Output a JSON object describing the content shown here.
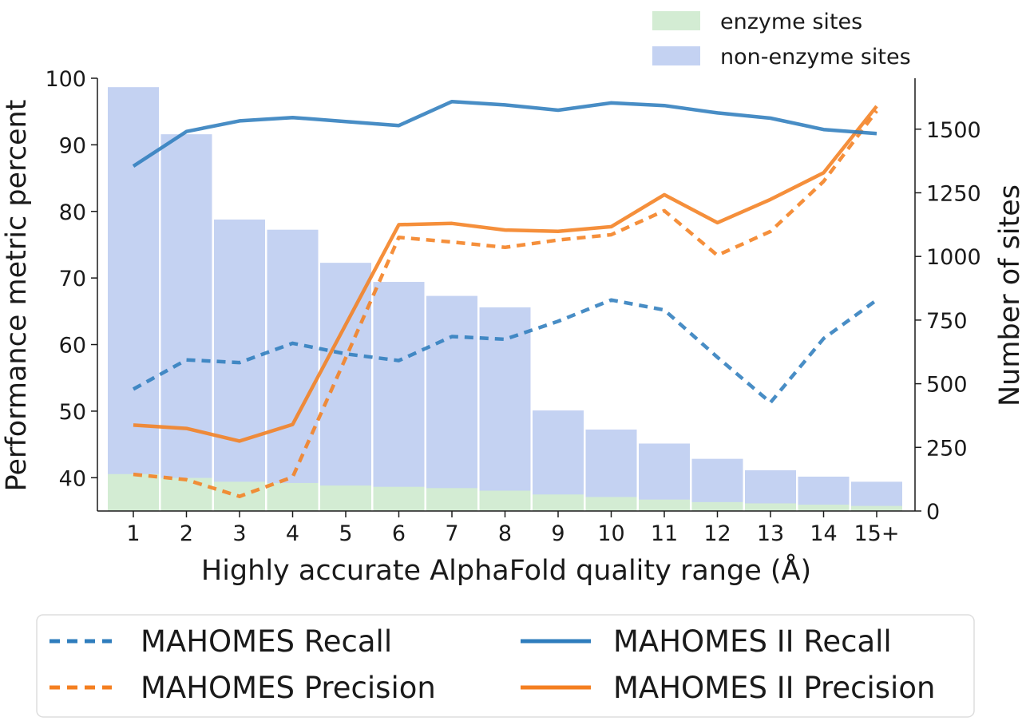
{
  "chart_data": {
    "type": "bar+line",
    "xlabel": "Highly accurate AlphaFold quality range (Å)",
    "ylabel_left": "Performance metric percent",
    "ylabel_right": "Number of sites",
    "categories": [
      "1",
      "2",
      "3",
      "4",
      "5",
      "6",
      "7",
      "8",
      "9",
      "10",
      "11",
      "12",
      "13",
      "14",
      "15+"
    ],
    "left_ylim": [
      35,
      100
    ],
    "left_yticks": [
      40,
      50,
      60,
      70,
      80,
      90,
      100
    ],
    "right_ylim": [
      0,
      1700
    ],
    "right_yticks": [
      0,
      250,
      500,
      750,
      1000,
      1250,
      1500
    ],
    "grid": false,
    "bar_series": [
      {
        "name": "non-enzyme sites",
        "color": "#c4d2f2",
        "values": [
          1665,
          1480,
          1145,
          1105,
          975,
          900,
          845,
          800,
          395,
          320,
          265,
          205,
          160,
          135,
          115
        ]
      },
      {
        "name": "enzyme sites",
        "color": "#d3ecd3",
        "values": [
          145,
          130,
          115,
          110,
          100,
          95,
          90,
          80,
          65,
          55,
          45,
          35,
          30,
          25,
          20
        ]
      }
    ],
    "line_series": [
      {
        "name": "MAHOMES Recall",
        "color": "#2f7dbd",
        "dash": "dashed",
        "values": [
          53.3,
          57.7,
          57.3,
          60.2,
          58.6,
          57.6,
          61.2,
          60.8,
          63.5,
          66.7,
          65.2,
          58.1,
          51.3,
          60.9,
          66.7
        ]
      },
      {
        "name": "MAHOMES Precision",
        "color": "#f47f20",
        "dash": "dashed",
        "values": [
          40.5,
          39.7,
          37.2,
          40.1,
          58.0,
          76.1,
          75.4,
          74.6,
          75.7,
          76.5,
          80.1,
          73.4,
          77.0,
          84.5,
          95.1
        ]
      },
      {
        "name": "MAHOMES II Recall",
        "color": "#2f7dbd",
        "dash": "solid",
        "values": [
          86.8,
          92.0,
          93.6,
          94.1,
          93.5,
          92.9,
          96.5,
          96.0,
          95.2,
          96.3,
          95.9,
          94.8,
          94.0,
          92.3,
          91.7
        ]
      },
      {
        "name": "MAHOMES II Precision",
        "color": "#f47f20",
        "dash": "solid",
        "values": [
          47.9,
          47.4,
          45.5,
          48.0,
          63.0,
          78.0,
          78.2,
          77.2,
          77.0,
          77.7,
          82.5,
          78.3,
          81.8,
          85.8,
          95.8
        ]
      }
    ],
    "legend_top_placement": "top-right",
    "legend_bottom_placement": "below"
  }
}
